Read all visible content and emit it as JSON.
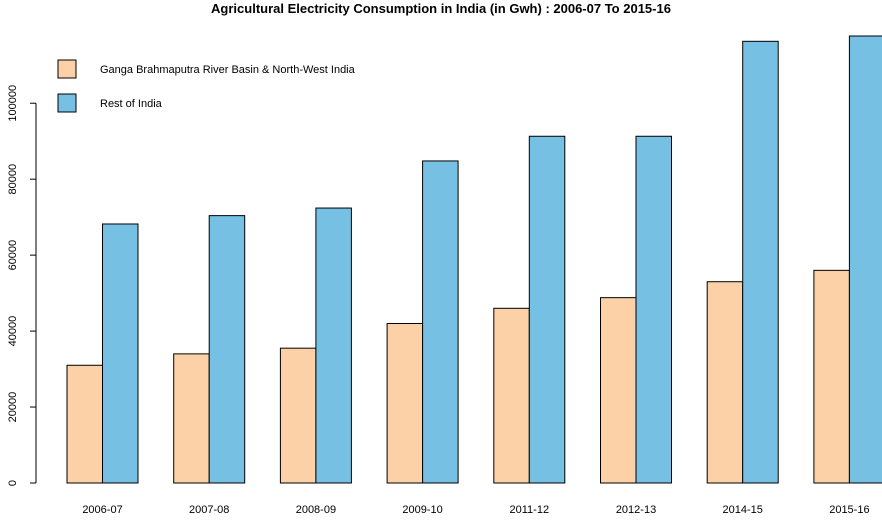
{
  "chart_data": {
    "type": "bar",
    "title": "Agricultural Electricity Consumption in India (in Gwh) : 2006-07 To 2015-16",
    "xlabel": "",
    "ylabel": "",
    "categories": [
      "2006-07",
      "2007-08",
      "2008-09",
      "2009-10",
      "2011-12",
      "2012-13",
      "2014-15",
      "2015-16"
    ],
    "series": [
      {
        "name": "Ganga Brahmaputra River Basin & North-West India",
        "color": "#FDD1A8",
        "values": [
          31000,
          34000,
          35500,
          42000,
          46000,
          48800,
          53000,
          56000
        ]
      },
      {
        "name": "Rest of India",
        "color": "#76C1E3",
        "values": [
          68200,
          70400,
          72400,
          84800,
          91300,
          91300,
          116300,
          117700
        ]
      }
    ],
    "ylim": [
      0,
      117700
    ],
    "yticks": [
      0,
      20000,
      40000,
      60000,
      80000,
      100000
    ],
    "ytick_labels": [
      "0",
      "20000",
      "40000",
      "60000",
      "80000",
      "100000"
    ],
    "legend": {
      "position": "top-left",
      "entries": [
        {
          "label": "Ganga Brahmaputra River Basin & North-West India",
          "color": "#FDD1A8"
        },
        {
          "label": "Rest of India",
          "color": "#76C1E3"
        }
      ]
    },
    "grid": false
  }
}
